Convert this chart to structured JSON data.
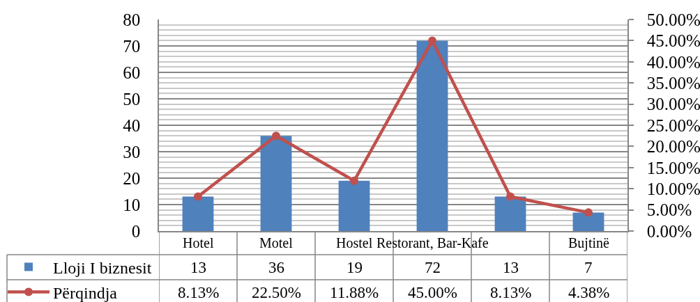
{
  "chart_data": {
    "type": "bar",
    "categories": [
      "Hotel",
      "Motel",
      "Hostel",
      "Restorant, Bar-Kafe",
      null,
      "Bujtinë"
    ],
    "series": [
      {
        "name": "Lloji I biznesit",
        "color": "#4f81bd",
        "values": [
          13,
          36,
          19,
          72,
          13,
          7
        ],
        "value_labels": [
          "13",
          "36",
          "19",
          "72",
          "13",
          "7"
        ]
      },
      {
        "name": "Përqindja",
        "type": "line",
        "axis": "y2",
        "color": "#c0504d",
        "values": [
          8.13,
          22.5,
          11.88,
          45,
          8.13,
          4.38
        ],
        "value_labels": [
          "8.13%",
          "22.50%",
          "11.88%",
          "45.00%",
          "8.13%",
          "4.38%"
        ]
      }
    ],
    "ylim": [
      0,
      80
    ],
    "yticks": [
      0,
      10,
      20,
      30,
      40,
      50,
      60,
      70,
      80
    ],
    "y2lim": [
      0,
      50
    ],
    "y2ticks": [
      {
        "value": 0,
        "label": "0.00%"
      },
      {
        "value": 5,
        "label": "5.00%"
      },
      {
        "value": 10,
        "label": "10.00%"
      },
      {
        "value": 15,
        "label": "15.00%"
      },
      {
        "value": 20,
        "label": "20.00%"
      },
      {
        "value": 25,
        "label": "25.00%"
      },
      {
        "value": 30,
        "label": "30.00%"
      },
      {
        "value": 35,
        "label": "35.00%"
      },
      {
        "value": 40,
        "label": "40.00%"
      },
      {
        "value": 45,
        "label": "45.00%"
      },
      {
        "value": 50,
        "label": "50.00%"
      }
    ],
    "grid": "y",
    "legend": "bottom left",
    "marker": "circle"
  }
}
